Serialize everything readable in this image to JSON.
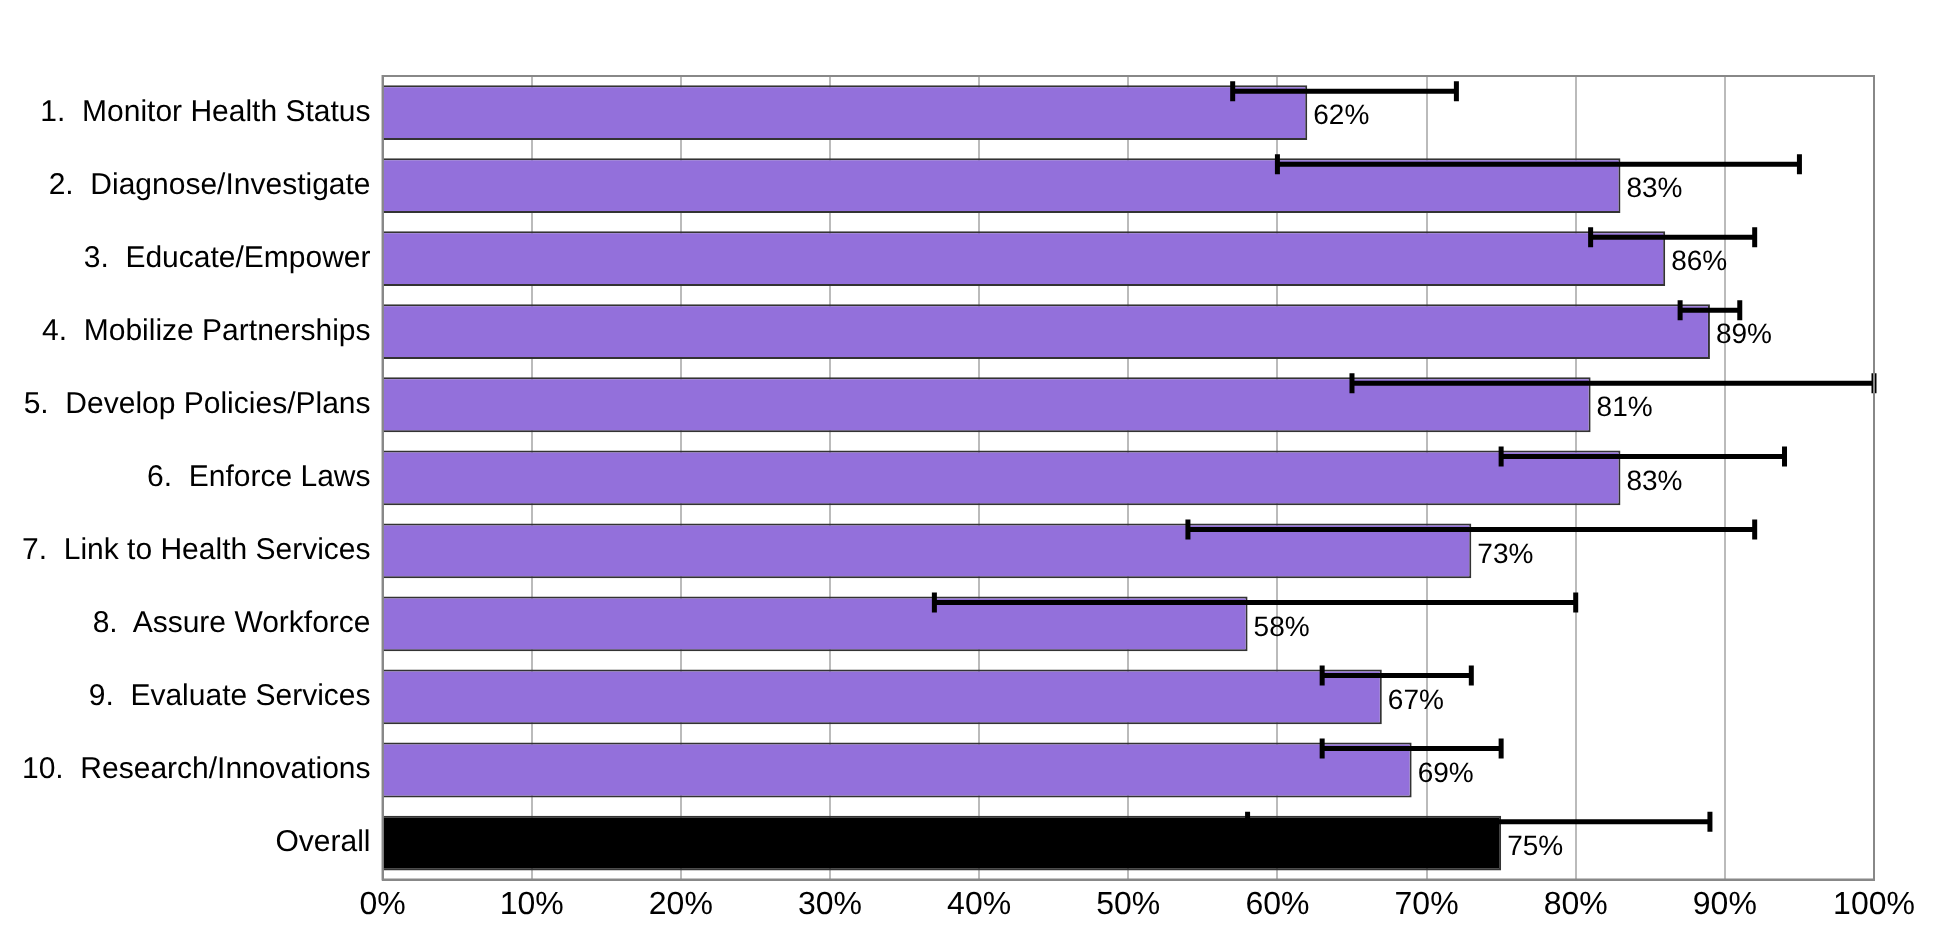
{
  "chart_data": {
    "type": "bar",
    "orientation": "horizontal",
    "categories": [
      "1.  Monitor Health Status",
      "2.  Diagnose/Investigate",
      "3.  Educate/Empower",
      "4.  Mobilize Partnerships",
      "5.  Develop Policies/Plans",
      "6.  Enforce Laws",
      "7.  Link to Health Services",
      "8.  Assure Workforce",
      "9.  Evaluate Services",
      "10.  Research/Innovations",
      "Overall"
    ],
    "values": [
      62,
      83,
      86,
      89,
      81,
      83,
      73,
      58,
      67,
      69,
      75
    ],
    "value_labels": [
      "62%",
      "83%",
      "86%",
      "89%",
      "81%",
      "83%",
      "73%",
      "58%",
      "67%",
      "69%",
      "75%"
    ],
    "colors": [
      "#9370db",
      "#9370db",
      "#9370db",
      "#9370db",
      "#9370db",
      "#9370db",
      "#9370db",
      "#9370db",
      "#9370db",
      "#9370db",
      "#000000"
    ],
    "errors": [
      [
        57,
        72
      ],
      [
        60,
        95
      ],
      [
        81,
        92
      ],
      [
        87,
        91
      ],
      [
        65,
        100
      ],
      [
        75,
        94
      ],
      [
        54,
        92
      ],
      [
        37,
        80
      ],
      [
        63,
        73
      ],
      [
        63,
        75
      ],
      [
        58,
        89
      ]
    ],
    "xlim": [
      0,
      100
    ],
    "xticks": [
      {
        "value": 0,
        "label": "0%"
      },
      {
        "value": 10,
        "label": "10%"
      },
      {
        "value": 20,
        "label": "20%"
      },
      {
        "value": 30,
        "label": "30%"
      },
      {
        "value": 40,
        "label": "40%"
      },
      {
        "value": 50,
        "label": "50%"
      },
      {
        "value": 60,
        "label": "60%"
      },
      {
        "value": 70,
        "label": "70%"
      },
      {
        "value": 80,
        "label": "80%"
      },
      {
        "value": 90,
        "label": "90%"
      },
      {
        "value": 100,
        "label": "100%"
      }
    ],
    "grid": "x",
    "legend": false
  }
}
